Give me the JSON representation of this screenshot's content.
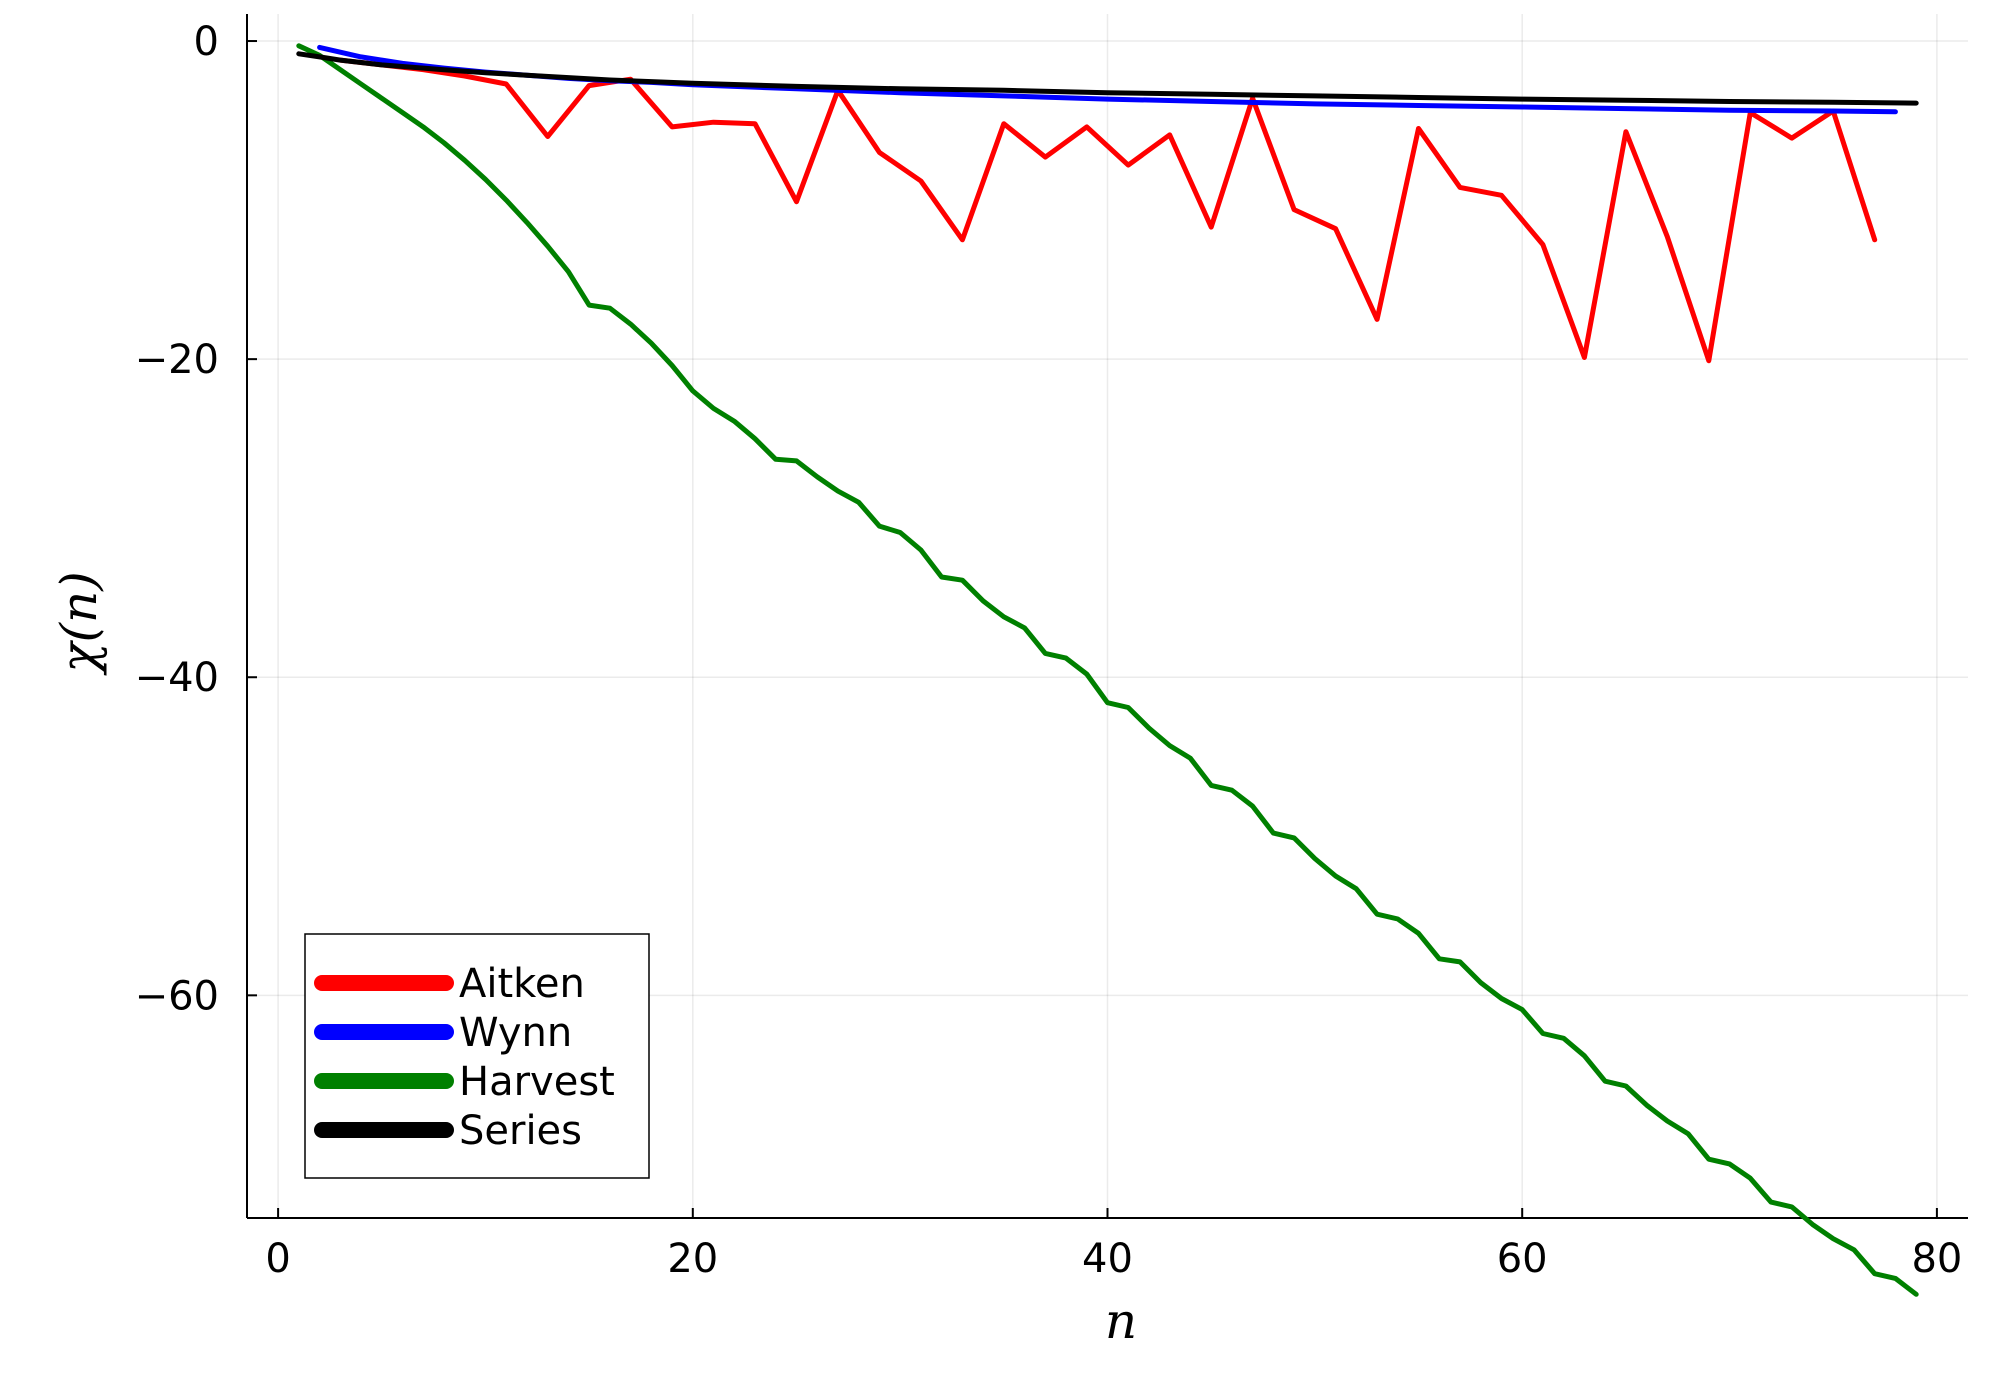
{
  "chart_data": {
    "type": "line",
    "title": "",
    "xlabel": "n",
    "ylabel": "χ(n)",
    "xlim": [
      -1.5,
      81.5
    ],
    "ylim": [
      -74,
      1.7
    ],
    "xticks": [
      0,
      20,
      40,
      60,
      80
    ],
    "yticks": [
      0,
      -20,
      -40,
      -60
    ],
    "x_tick_labels": [
      "0",
      "20",
      "40",
      "60",
      "80"
    ],
    "y_tick_labels": [
      "0",
      "−20",
      "−40",
      "−60"
    ],
    "grid": true,
    "legend_position": "bottom-left",
    "series": [
      {
        "name": "Aitken",
        "color": "#ff0000",
        "x": [
          3,
          5,
          7,
          9,
          11,
          13,
          15,
          17,
          19,
          21,
          23,
          25,
          27,
          29,
          31,
          33,
          35,
          37,
          39,
          41,
          43,
          45,
          47,
          49,
          51,
          53,
          55,
          57,
          59,
          61,
          63,
          65,
          67,
          69,
          71,
          73,
          75,
          77
        ],
        "y": [
          -1.2,
          -1.5,
          -1.8,
          -2.2,
          -2.7,
          -6.0,
          -2.8,
          -2.4,
          -5.4,
          -5.1,
          -5.2,
          -10.1,
          -3.1,
          -7.0,
          -8.8,
          -12.5,
          -5.2,
          -7.3,
          -5.4,
          -7.8,
          -5.9,
          -11.7,
          -3.6,
          -10.6,
          -11.8,
          -17.5,
          -5.5,
          -9.2,
          -9.7,
          -12.8,
          -19.9,
          -5.7,
          -12.3,
          -20.1,
          -4.5,
          -6.1,
          -4.4,
          -12.5
        ]
      },
      {
        "name": "Wynn",
        "color": "#0000ff",
        "x": [
          2,
          3,
          4,
          5,
          6,
          7,
          8,
          10,
          12,
          14,
          16,
          18,
          20,
          25,
          30,
          35,
          40,
          45,
          50,
          55,
          60,
          65,
          70,
          75,
          78
        ],
        "y": [
          -0.4,
          -0.7,
          -1.0,
          -1.2,
          -1.4,
          -1.55,
          -1.7,
          -1.95,
          -2.15,
          -2.35,
          -2.5,
          -2.6,
          -2.75,
          -3.0,
          -3.25,
          -3.45,
          -3.65,
          -3.8,
          -3.95,
          -4.05,
          -4.15,
          -4.25,
          -4.35,
          -4.4,
          -4.45
        ]
      },
      {
        "name": "Harvest",
        "color": "#008000",
        "x": [
          1,
          2,
          3,
          4,
          5,
          6,
          7,
          8,
          9,
          10,
          11,
          12,
          13,
          14,
          15,
          16,
          17,
          18,
          19,
          20,
          21,
          22,
          23,
          24,
          25,
          26,
          27,
          28,
          29,
          30,
          31,
          32,
          33,
          34,
          35,
          36,
          37,
          38,
          39,
          40,
          41,
          42,
          43,
          44,
          45,
          46,
          47,
          48,
          49,
          50,
          51,
          52,
          53,
          54,
          55,
          56,
          57,
          58,
          59,
          60,
          61,
          62,
          63,
          64,
          65,
          66,
          67,
          68,
          69,
          70,
          71,
          72,
          73,
          74,
          75,
          76,
          77,
          78,
          79
        ],
        "y": [
          -0.3,
          -0.9,
          -1.8,
          -2.7,
          -3.6,
          -4.5,
          -5.4,
          -6.4,
          -7.5,
          -8.7,
          -10.0,
          -11.4,
          -12.9,
          -14.5,
          -16.6,
          -16.8,
          -17.8,
          -19.0,
          -20.4,
          -22.0,
          -23.1,
          -23.9,
          -25.0,
          -26.3,
          -26.4,
          -27.4,
          -28.3,
          -29.0,
          -30.5,
          -30.9,
          -32.0,
          -33.7,
          -33.9,
          -35.2,
          -36.2,
          -36.9,
          -38.5,
          -38.8,
          -39.8,
          -41.6,
          -41.9,
          -43.2,
          -44.3,
          -45.1,
          -46.8,
          -47.1,
          -48.1,
          -49.8,
          -50.1,
          -51.4,
          -52.5,
          -53.3,
          -54.9,
          -55.2,
          -56.1,
          -57.7,
          -57.9,
          -59.2,
          -60.2,
          -60.9,
          -62.4,
          -62.7,
          -63.8,
          -65.4,
          -65.7,
          -66.9,
          -67.9,
          -68.7,
          -70.3,
          -70.6,
          -71.5,
          -73.0,
          -73.3,
          -74.4,
          -75.3,
          -76.0,
          -77.5,
          -77.8,
          -78.8
        ]
      },
      {
        "name": "Series",
        "color": "#000000",
        "x": [
          1,
          2,
          3,
          4,
          5,
          6,
          7,
          8,
          10,
          12,
          14,
          16,
          18,
          20,
          25,
          30,
          35,
          40,
          45,
          50,
          55,
          60,
          65,
          70,
          75,
          79
        ],
        "y": [
          -0.8,
          -1.0,
          -1.2,
          -1.35,
          -1.5,
          -1.6,
          -1.7,
          -1.8,
          -2.0,
          -2.15,
          -2.3,
          -2.45,
          -2.55,
          -2.65,
          -2.85,
          -3.0,
          -3.1,
          -3.25,
          -3.35,
          -3.45,
          -3.55,
          -3.65,
          -3.72,
          -3.8,
          -3.85,
          -3.9
        ]
      }
    ]
  }
}
